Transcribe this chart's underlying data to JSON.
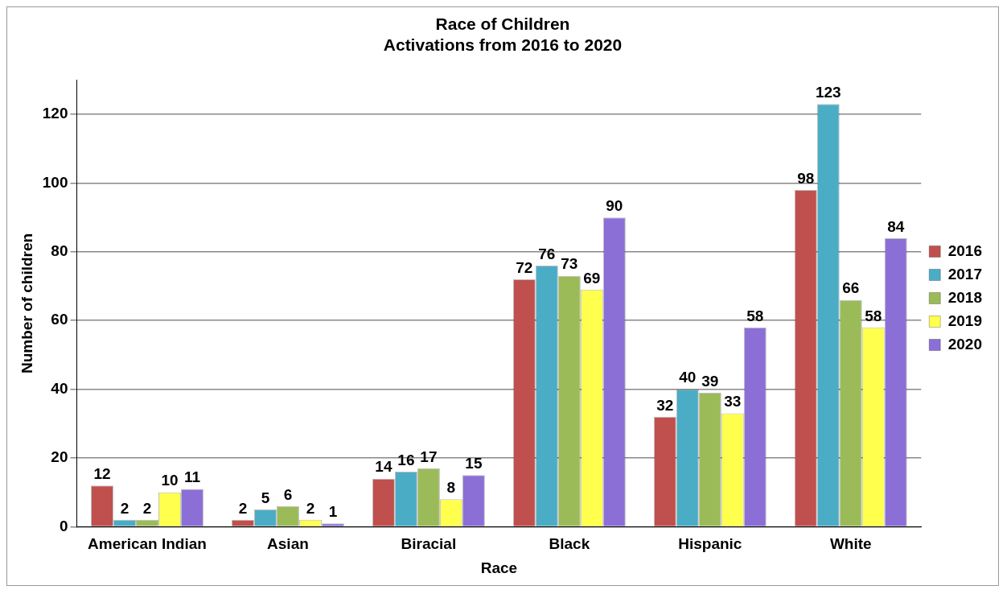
{
  "chart_data": {
    "type": "bar",
    "title": [
      "Race of Children",
      "Activations from 2016 to 2020"
    ],
    "xlabel": "Race",
    "ylabel": "Number of children",
    "categories": [
      "American Indian",
      "Asian",
      "Biracial",
      "Black",
      "Hispanic",
      "White"
    ],
    "series": [
      {
        "name": "2016",
        "color": "#c0504d",
        "values": [
          12,
          2,
          14,
          72,
          32,
          98
        ]
      },
      {
        "name": "2017",
        "color": "#4bacc6",
        "values": [
          2,
          5,
          16,
          76,
          40,
          123
        ]
      },
      {
        "name": "2018",
        "color": "#9bbb59",
        "values": [
          2,
          6,
          17,
          73,
          39,
          66
        ]
      },
      {
        "name": "2019",
        "color": "#ffff4d",
        "values": [
          10,
          2,
          8,
          69,
          33,
          58
        ]
      },
      {
        "name": "2020",
        "color": "#8b6fd6",
        "values": [
          11,
          1,
          15,
          90,
          58,
          84
        ]
      }
    ],
    "ylim": [
      0,
      130
    ],
    "yticks": [
      0,
      20,
      40,
      60,
      80,
      100,
      120
    ],
    "grid": "y",
    "legend": "right",
    "data_labels": true
  }
}
